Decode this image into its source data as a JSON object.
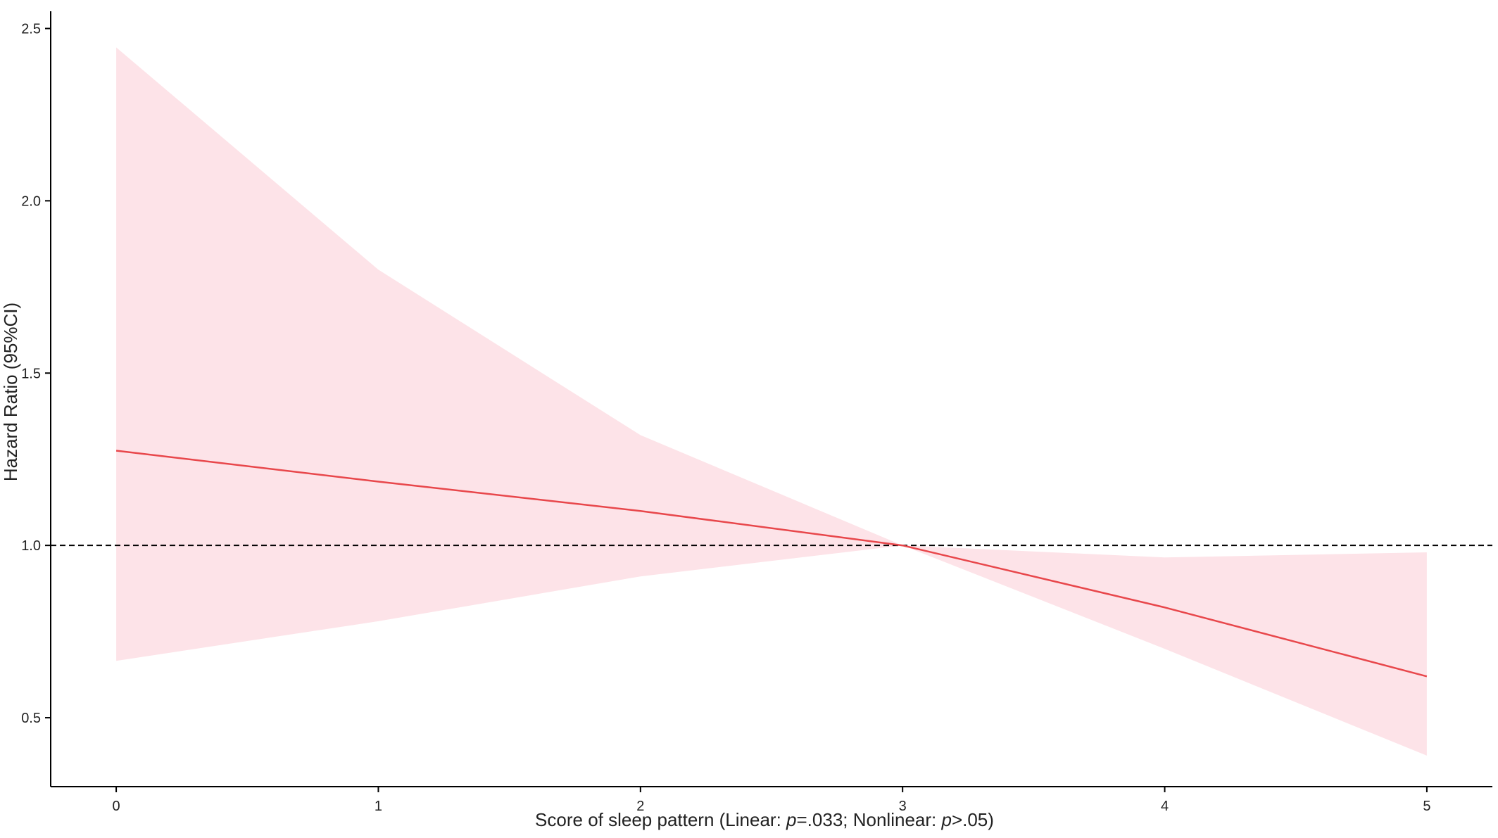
{
  "chart_data": {
    "type": "line",
    "title": "",
    "xlabel": {
      "parts": [
        "Score of sleep pattern  (Linear: ",
        "p",
        "=.033; Nonlinear: ",
        "p",
        ">.05)"
      ]
    },
    "ylabel": "Hazard Ratio (95%CI)",
    "xlim": [
      -0.25,
      5.25
    ],
    "ylim": [
      0.3,
      2.55
    ],
    "x_ticks": [
      0,
      1,
      2,
      3,
      4,
      5
    ],
    "x_tick_labels": [
      "0",
      "1",
      "2",
      "3",
      "4",
      "5"
    ],
    "y_ticks": [
      0.5,
      1.0,
      1.5,
      2.0,
      2.5
    ],
    "y_tick_labels": [
      "0.5",
      "1.0",
      "1.5",
      "2.0",
      "2.5"
    ],
    "reference_line": {
      "y": 1.0,
      "style": "dashed",
      "color": "#000000"
    },
    "series": [
      {
        "x": [
          0,
          1,
          2,
          3,
          4,
          5
        ],
        "y": [
          1.275,
          1.185,
          1.1,
          1.0,
          0.82,
          0.62
        ],
        "ci_lower": [
          0.665,
          0.78,
          0.91,
          1.0,
          0.7,
          0.39
        ],
        "ci_upper": [
          2.445,
          1.8,
          1.32,
          1.0,
          0.965,
          0.98
        ],
        "color": "#e8474b",
        "fill_color": "#fde3e8"
      }
    ],
    "grid": false,
    "legend": "none"
  }
}
